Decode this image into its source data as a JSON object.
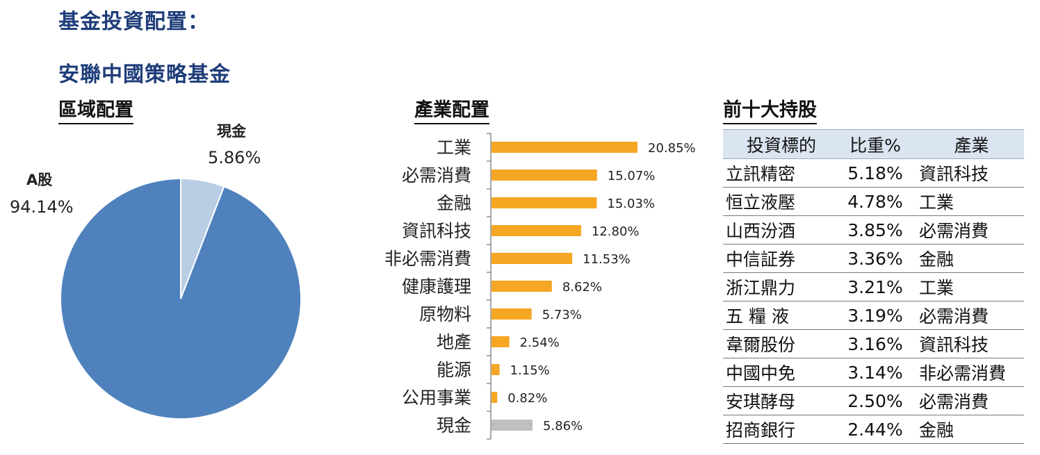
{
  "page": {
    "heading": "基金投資配置：",
    "fund_name": "安聯中國策略基金"
  },
  "region": {
    "title": "區域配置",
    "slices": [
      {
        "label": "A股",
        "value_text": "94.14%",
        "value": 94.14,
        "color": "#4f81bd"
      },
      {
        "label": "現金",
        "value_text": "5.86%",
        "value": 5.86,
        "color": "#b9cde5"
      }
    ]
  },
  "industry": {
    "title": "產業配置"
  },
  "holdings": {
    "title": "前十大持股",
    "columns": [
      "投資標的",
      "比重%",
      "產業"
    ],
    "rows": [
      [
        "立訊精密",
        "5.18%",
        "資訊科技"
      ],
      [
        "恒立液壓",
        "4.78%",
        "工業"
      ],
      [
        "山西汾酒",
        "3.85%",
        "必需消費"
      ],
      [
        "中信証券",
        "3.36%",
        "金融"
      ],
      [
        "浙江鼎力",
        "3.21%",
        "工業"
      ],
      [
        "五 糧 液",
        "3.19%",
        "必需消費"
      ],
      [
        "韋爾股份",
        "3.16%",
        "資訊科技"
      ],
      [
        "中國中免",
        "3.14%",
        "非必需消費"
      ],
      [
        "安琪酵母",
        "2.50%",
        "必需消費"
      ],
      [
        "招商銀行",
        "2.44%",
        "金融"
      ]
    ]
  },
  "chart_data": [
    {
      "type": "pie",
      "title": "區域配置",
      "labels": [
        "A股",
        "現金"
      ],
      "values": [
        94.14,
        5.86
      ],
      "colors": [
        "#4f81bd",
        "#b9cde5"
      ]
    },
    {
      "type": "bar",
      "orientation": "horizontal",
      "title": "產業配置",
      "categories": [
        "工業",
        "必需消費",
        "金融",
        "資訊科技",
        "非必需消費",
        "健康護理",
        "原物料",
        "地產",
        "能源",
        "公用事業",
        "現金"
      ],
      "values": [
        20.85,
        15.07,
        15.03,
        12.8,
        11.53,
        8.62,
        5.73,
        2.54,
        1.15,
        0.82,
        5.86
      ],
      "data_labels": [
        "20.85%",
        "15.07%",
        "15.03%",
        "12.80%",
        "11.53%",
        "8.62%",
        "5.73%",
        "2.54%",
        "1.15%",
        "0.82%",
        "5.86%"
      ],
      "colors": [
        "#f5a623",
        "#f5a623",
        "#f5a623",
        "#f5a623",
        "#f5a623",
        "#f5a623",
        "#f5a623",
        "#f5a623",
        "#f5a623",
        "#f5a623",
        "#bfbfbf"
      ],
      "xlim": [
        0,
        22
      ],
      "grid": false
    }
  ]
}
